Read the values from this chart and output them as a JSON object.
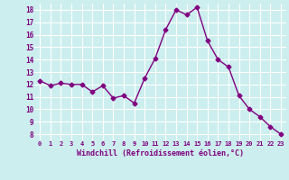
{
  "x": [
    0,
    1,
    2,
    3,
    4,
    5,
    6,
    7,
    8,
    9,
    10,
    11,
    12,
    13,
    14,
    15,
    16,
    17,
    18,
    19,
    20,
    21,
    22,
    23
  ],
  "y": [
    12.3,
    11.9,
    12.1,
    12.0,
    12.0,
    11.4,
    11.9,
    10.9,
    11.1,
    10.5,
    12.5,
    14.1,
    16.4,
    18.0,
    17.6,
    18.2,
    15.5,
    14.0,
    13.4,
    11.1,
    10.0,
    9.4,
    8.6,
    8.0
  ],
  "line_color": "#800080",
  "marker": "D",
  "marker_size": 2.5,
  "bg_color": "#cceeee",
  "grid_color": "#ffffff",
  "xlabel": "Windchill (Refroidissement éolien,°C)",
  "xlabel_color": "#800080",
  "tick_color": "#800080",
  "ylim": [
    7.5,
    18.5
  ],
  "xlim": [
    -0.5,
    23.5
  ],
  "yticks": [
    8,
    9,
    10,
    11,
    12,
    13,
    14,
    15,
    16,
    17,
    18
  ],
  "xticks": [
    0,
    1,
    2,
    3,
    4,
    5,
    6,
    7,
    8,
    9,
    10,
    11,
    12,
    13,
    14,
    15,
    16,
    17,
    18,
    19,
    20,
    21,
    22,
    23
  ],
  "xtick_labels": [
    "0",
    "1",
    "2",
    "3",
    "4",
    "5",
    "6",
    "7",
    "8",
    "9",
    "10",
    "11",
    "12",
    "13",
    "14",
    "15",
    "16",
    "17",
    "18",
    "19",
    "20",
    "21",
    "22",
    "23"
  ],
  "line_width": 1.0
}
